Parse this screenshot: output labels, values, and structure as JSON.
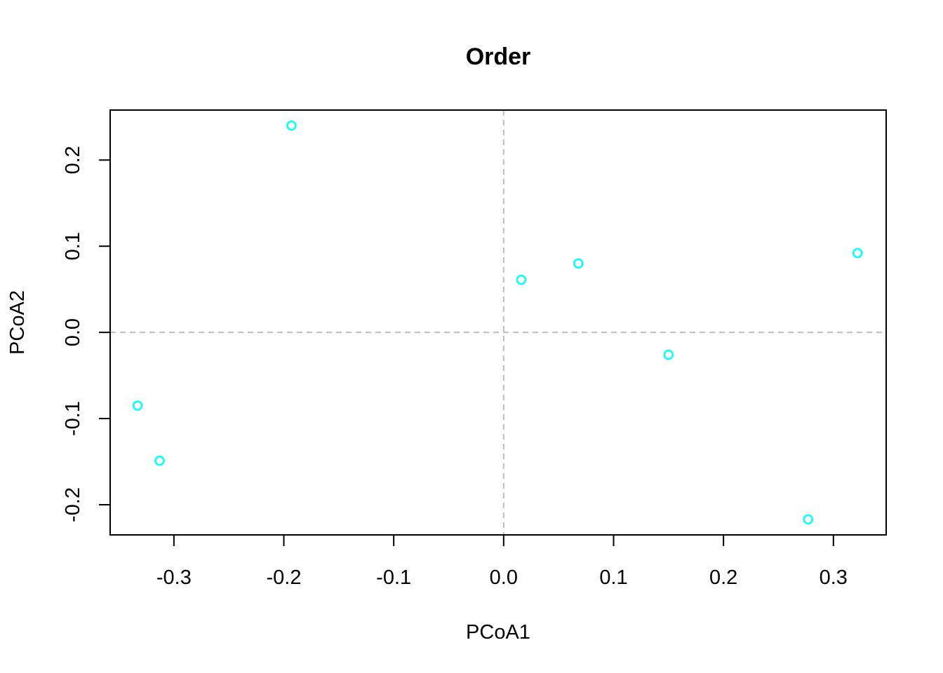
{
  "chart_data": {
    "type": "scatter",
    "title": "Order",
    "xlabel": "PCoA1",
    "ylabel": "PCoA2",
    "xlim": [
      -0.358,
      0.348
    ],
    "ylim": [
      -0.235,
      0.258
    ],
    "x_ticks": [
      -0.3,
      -0.2,
      -0.1,
      0.0,
      0.1,
      0.2,
      0.3
    ],
    "x_tick_labels": [
      "-0.3",
      "-0.2",
      "-0.1",
      "0.0",
      "0.1",
      "0.2",
      "0.3"
    ],
    "y_ticks": [
      -0.2,
      -0.1,
      0.0,
      0.1,
      0.2
    ],
    "y_tick_labels": [
      "-0.2",
      "-0.1",
      "0.0",
      "0.1",
      "0.2"
    ],
    "reference_lines": {
      "x": 0.0,
      "y": 0.0,
      "style": "dashed",
      "color": "#bebebe"
    },
    "marker": {
      "shape": "open-circle",
      "color": "#00ffff"
    },
    "grid": false,
    "points": [
      {
        "x": -0.193,
        "y": 0.24
      },
      {
        "x": -0.333,
        "y": -0.085
      },
      {
        "x": -0.313,
        "y": -0.149
      },
      {
        "x": 0.016,
        "y": 0.061
      },
      {
        "x": 0.068,
        "y": 0.08
      },
      {
        "x": 0.15,
        "y": -0.026
      },
      {
        "x": 0.277,
        "y": -0.217
      },
      {
        "x": 0.322,
        "y": 0.092
      }
    ]
  }
}
